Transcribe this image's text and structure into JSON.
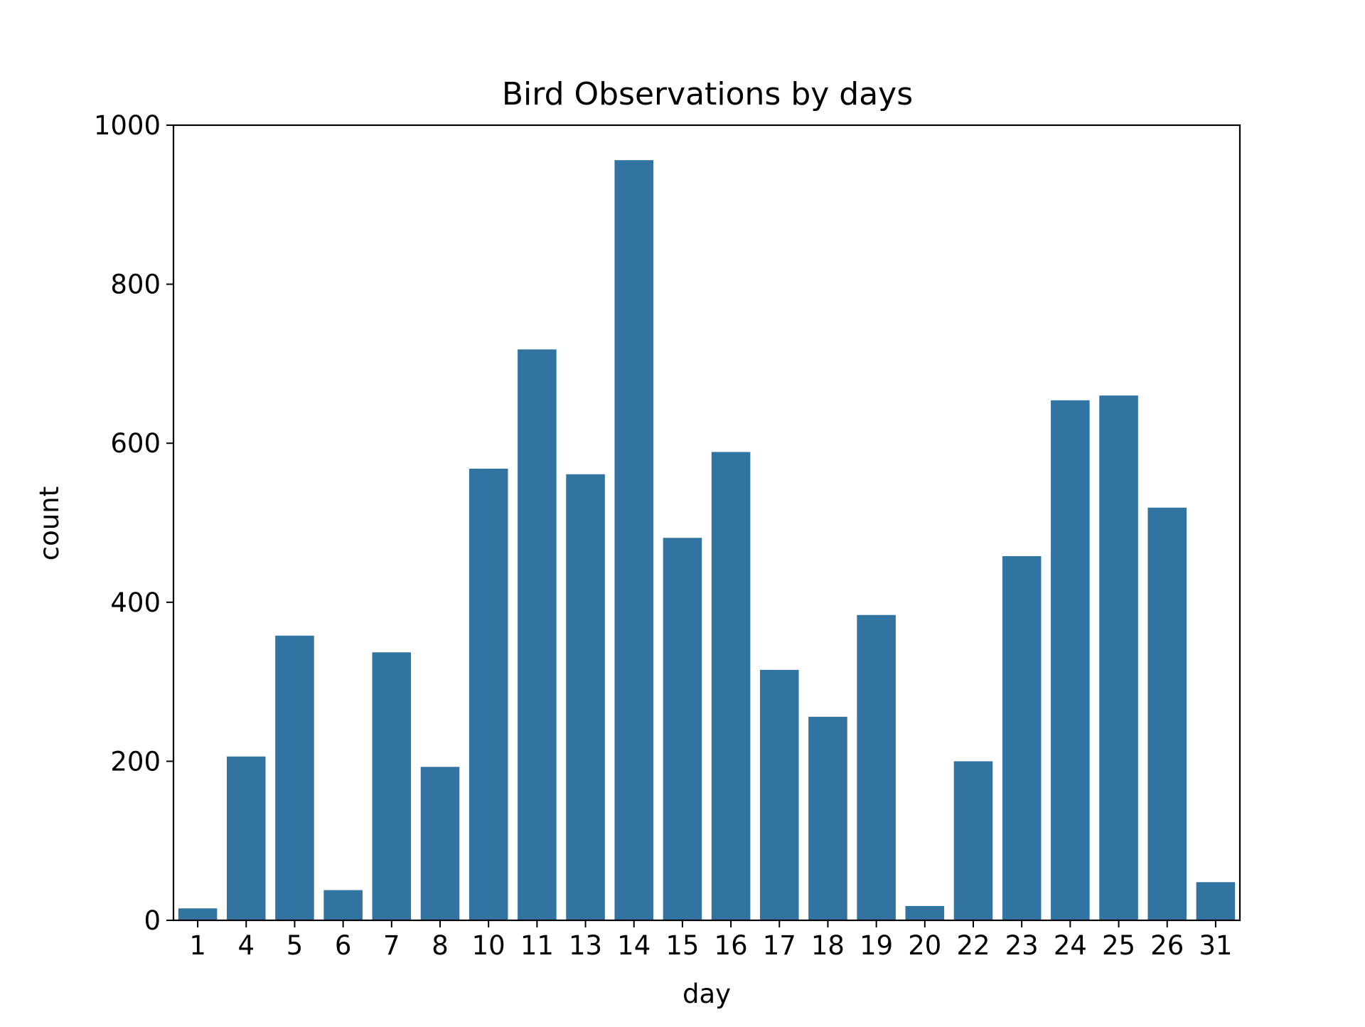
{
  "chart_data": {
    "type": "bar",
    "title": "Bird Observations by days",
    "xlabel": "day",
    "ylabel": "count",
    "categories": [
      "1",
      "4",
      "5",
      "6",
      "7",
      "8",
      "10",
      "11",
      "13",
      "14",
      "15",
      "16",
      "17",
      "18",
      "19",
      "20",
      "22",
      "23",
      "24",
      "25",
      "26",
      "31"
    ],
    "values": [
      15,
      206,
      358,
      38,
      337,
      193,
      568,
      718,
      561,
      956,
      481,
      589,
      315,
      256,
      384,
      18,
      200,
      458,
      654,
      660,
      519,
      48
    ],
    "ylim": [
      0,
      1000
    ],
    "yticks": [
      0,
      200,
      400,
      600,
      800,
      1000
    ],
    "grid": false,
    "legend": "none",
    "bar_color": "#3274a1"
  }
}
